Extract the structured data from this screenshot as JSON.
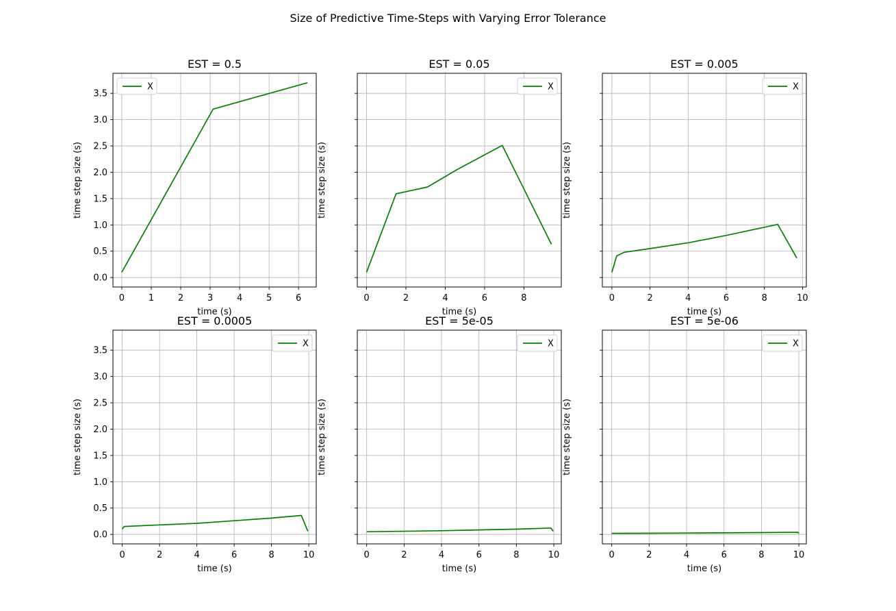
{
  "figure": {
    "suptitle": "Size of Predictive Time-Steps with Varying Error Tolerance"
  },
  "chart_data": [
    {
      "type": "line",
      "title": "EST = 0.5",
      "xlabel": "time (s)",
      "ylabel": "time step size (s)",
      "xlim": [
        -0.3,
        6.6
      ],
      "ylim": [
        -0.18,
        3.88
      ],
      "xticks": [
        0,
        1,
        2,
        3,
        4,
        5,
        6
      ],
      "yticks": [
        0.0,
        0.5,
        1.0,
        1.5,
        2.0,
        2.5,
        3.0,
        3.5
      ],
      "ytick_labels_shown": true,
      "grid": true,
      "legend": "upper left",
      "color": "#008000",
      "series": [
        {
          "name": "X",
          "x": [
            0,
            3.1,
            6.3
          ],
          "y": [
            0.1,
            3.2,
            3.7
          ]
        }
      ]
    },
    {
      "type": "line",
      "title": "EST = 0.05",
      "xlabel": "time (s)",
      "ylabel": "time step size (s)",
      "xlim": [
        -0.47,
        9.9
      ],
      "ylim": [
        -0.18,
        3.88
      ],
      "xticks": [
        0,
        2,
        4,
        6,
        8
      ],
      "yticks": [
        0.0,
        0.5,
        1.0,
        1.5,
        2.0,
        2.5,
        3.0,
        3.5
      ],
      "ytick_labels_shown": false,
      "grid": true,
      "legend": "upper right",
      "color": "#008000",
      "series": [
        {
          "name": "X",
          "x": [
            0,
            1.5,
            3.1,
            4.6,
            6.9,
            9.4
          ],
          "y": [
            0.1,
            1.59,
            1.72,
            2.05,
            2.51,
            0.63
          ]
        }
      ]
    },
    {
      "type": "line",
      "title": "EST = 0.005",
      "xlabel": "time (s)",
      "ylabel": "time step size (s)",
      "xlim": [
        -0.5,
        10.2
      ],
      "ylim": [
        -0.18,
        3.88
      ],
      "xticks": [
        0,
        2,
        4,
        6,
        8,
        10
      ],
      "yticks": [
        0.0,
        0.5,
        1.0,
        1.5,
        2.0,
        2.5,
        3.0,
        3.5
      ],
      "ytick_labels_shown": false,
      "grid": true,
      "legend": "upper right",
      "color": "#008000",
      "series": [
        {
          "name": "X",
          "x": [
            0,
            0.25,
            0.65,
            2,
            4,
            6,
            8.7,
            9.7
          ],
          "y": [
            0.1,
            0.41,
            0.48,
            0.55,
            0.66,
            0.8,
            1.01,
            0.37
          ]
        }
      ]
    },
    {
      "type": "line",
      "title": "EST = 0.0005",
      "xlabel": "time (s)",
      "ylabel": "time step size (s)",
      "xlim": [
        -0.5,
        10.4
      ],
      "ylim": [
        -0.18,
        3.88
      ],
      "xticks": [
        0,
        2,
        4,
        6,
        8,
        10
      ],
      "yticks": [
        0.0,
        0.5,
        1.0,
        1.5,
        2.0,
        2.5,
        3.0,
        3.5
      ],
      "ytick_labels_shown": true,
      "grid": true,
      "legend": "upper right",
      "color": "#008000",
      "series": [
        {
          "name": "X",
          "x": [
            0,
            0.1,
            2,
            4,
            6,
            8,
            9.6,
            9.95
          ],
          "y": [
            0.1,
            0.15,
            0.18,
            0.21,
            0.26,
            0.31,
            0.36,
            0.06
          ]
        }
      ]
    },
    {
      "type": "line",
      "title": "EST = 5e-05",
      "xlabel": "time (s)",
      "ylabel": "time step size (s)",
      "xlim": [
        -0.5,
        10.4
      ],
      "ylim": [
        -0.18,
        3.88
      ],
      "xticks": [
        0,
        2,
        4,
        6,
        8,
        10
      ],
      "yticks": [
        0.0,
        0.5,
        1.0,
        1.5,
        2.0,
        2.5,
        3.0,
        3.5
      ],
      "ytick_labels_shown": false,
      "grid": true,
      "legend": "upper right",
      "color": "#008000",
      "series": [
        {
          "name": "X",
          "x": [
            0,
            2,
            4,
            6,
            8,
            9.85,
            9.97
          ],
          "y": [
            0.05,
            0.06,
            0.07,
            0.085,
            0.1,
            0.12,
            0.06
          ]
        }
      ]
    },
    {
      "type": "line",
      "title": "EST = 5e-06",
      "xlabel": "time (s)",
      "ylabel": "time step size (s)",
      "xlim": [
        -0.5,
        10.4
      ],
      "ylim": [
        -0.18,
        3.88
      ],
      "xticks": [
        0,
        2,
        4,
        6,
        8,
        10
      ],
      "yticks": [
        0.0,
        0.5,
        1.0,
        1.5,
        2.0,
        2.5,
        3.0,
        3.5
      ],
      "ytick_labels_shown": false,
      "grid": true,
      "legend": "upper right",
      "color": "#008000",
      "series": [
        {
          "name": "X",
          "x": [
            0,
            2,
            4,
            6,
            8,
            9.95,
            10.0
          ],
          "y": [
            0.02,
            0.022,
            0.026,
            0.03,
            0.035,
            0.04,
            0.02
          ]
        }
      ]
    }
  ]
}
